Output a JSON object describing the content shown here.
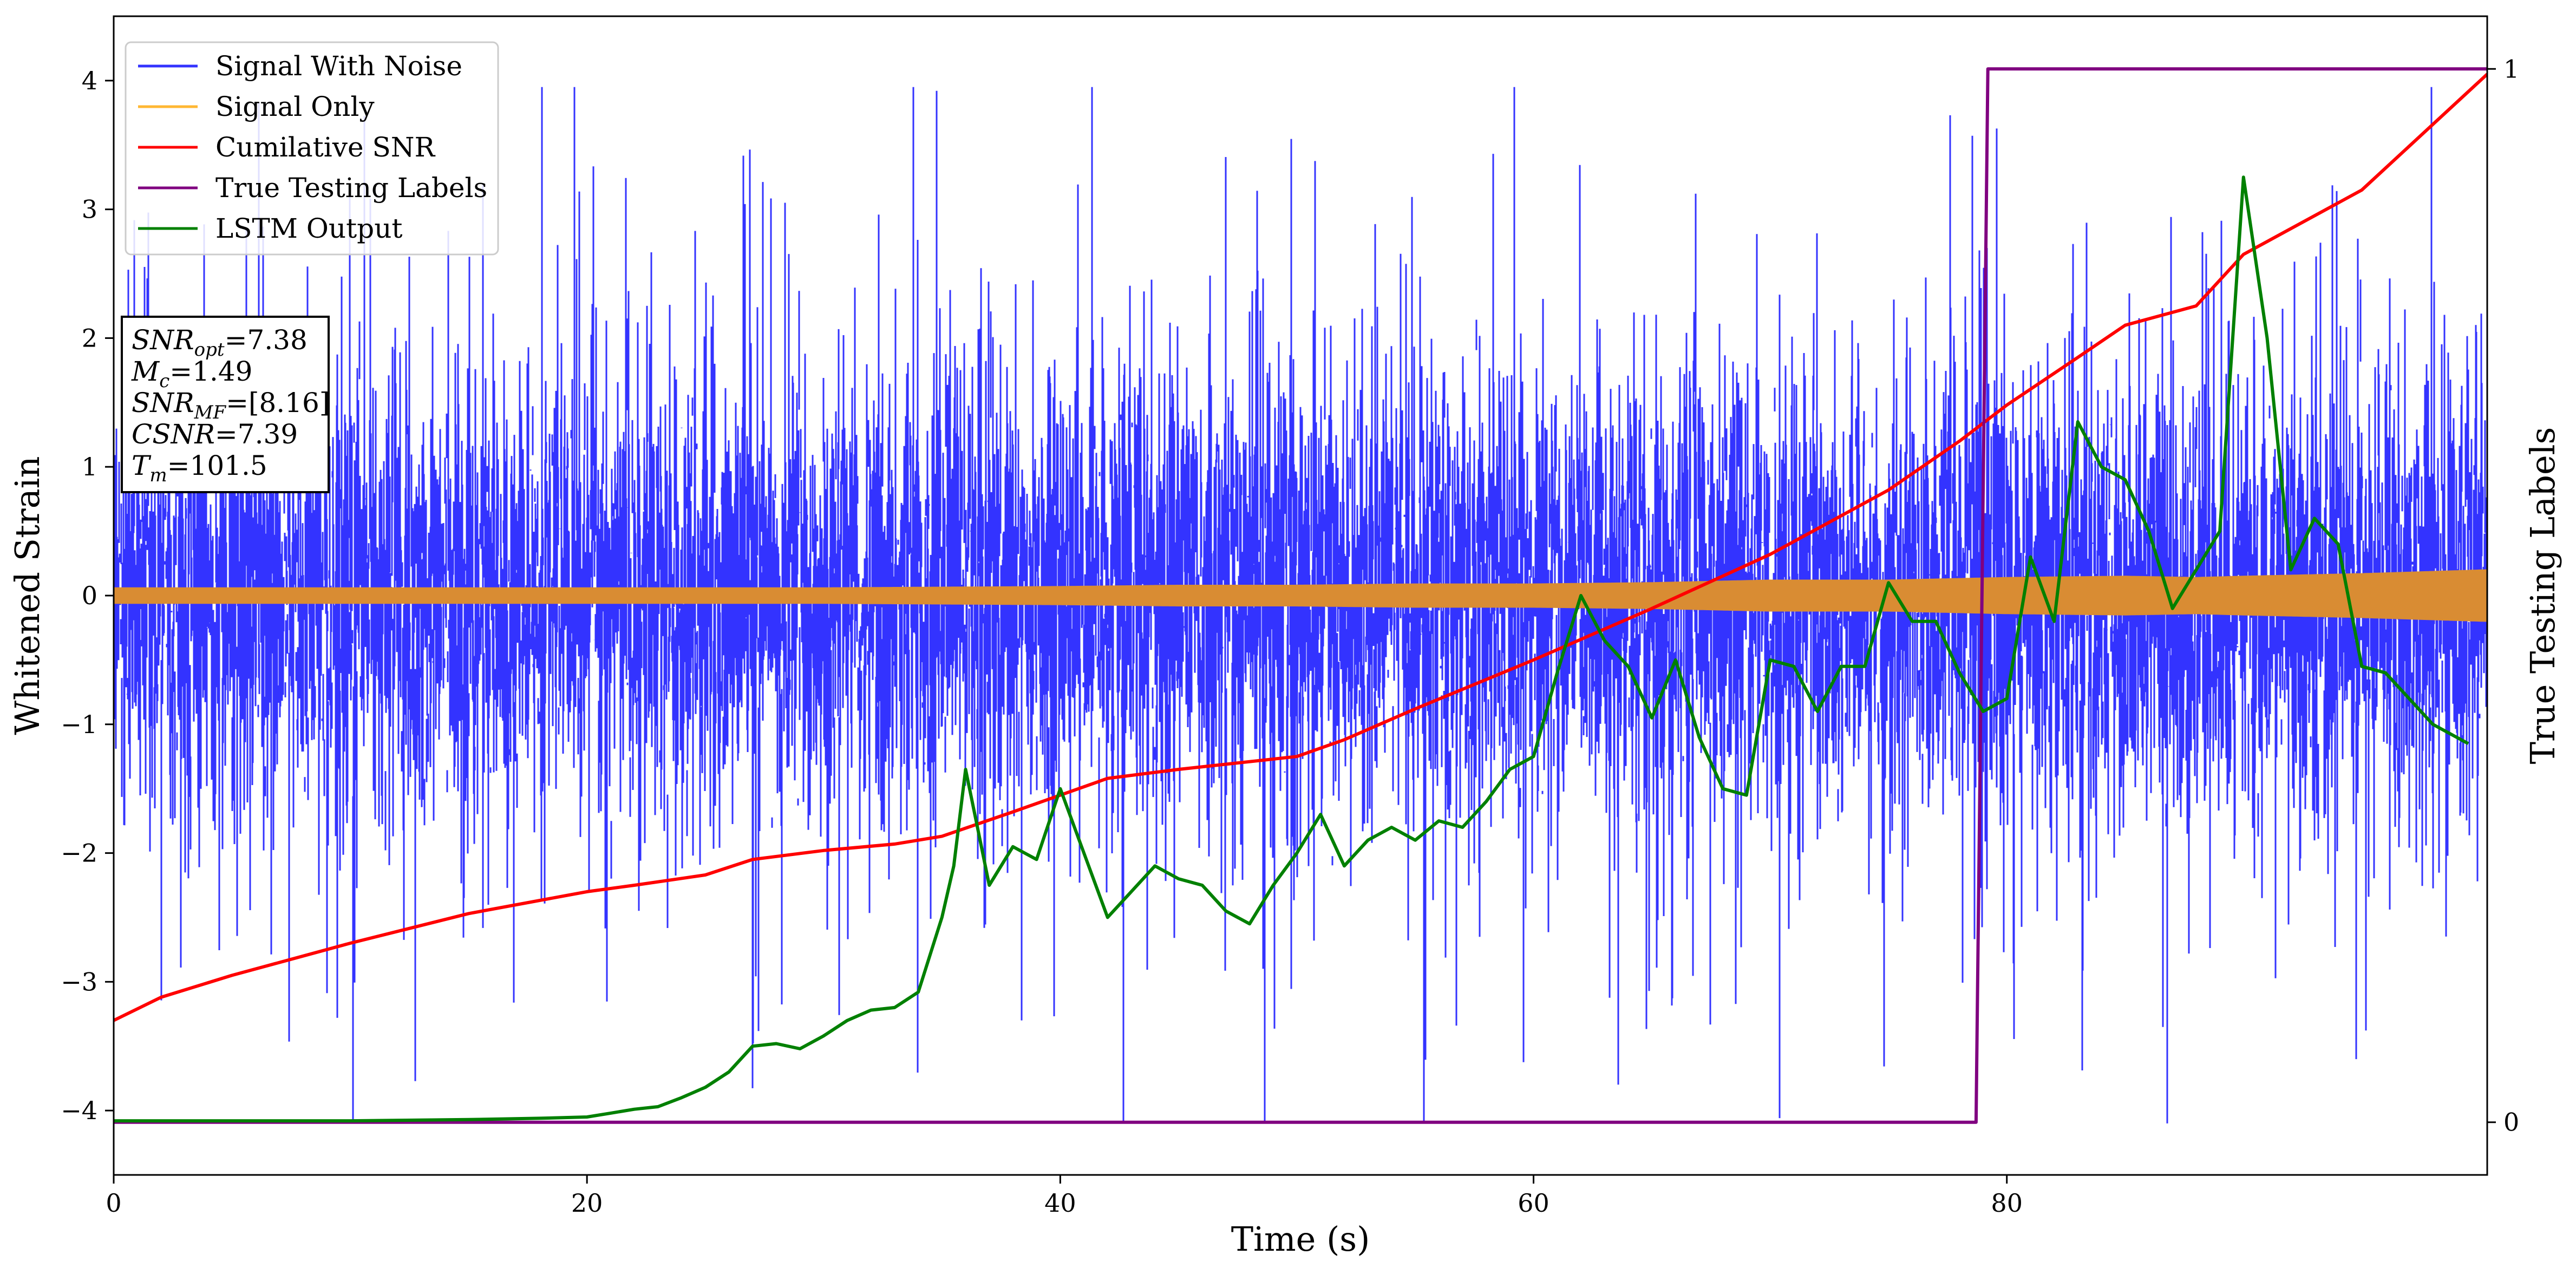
{
  "chart_data": {
    "type": "line",
    "title": "",
    "xlabel": "Time (s)",
    "ylabel": "Whitened Strain",
    "y2label": "True Testing Labels",
    "xlim": [
      0,
      100.3
    ],
    "ylim": [
      -4.5,
      4.5
    ],
    "y2lim": [
      -0.05,
      1.05
    ],
    "x_ticks": [
      "0",
      "20",
      "40",
      "60",
      "80"
    ],
    "x_tick_values": [
      0,
      20,
      40,
      60,
      80
    ],
    "y_ticks": [
      "−4",
      "−3",
      "−2",
      "−1",
      "0",
      "1",
      "2",
      "3",
      "4"
    ],
    "y_tick_values": [
      -4,
      -3,
      -2,
      -1,
      0,
      1,
      2,
      3,
      4
    ],
    "y2_ticks": [
      "0",
      "1"
    ],
    "y2_tick_values": [
      0,
      1
    ],
    "grid": false,
    "legend_position": "upper-left",
    "series": [
      {
        "name": "Signal With Noise",
        "color": "#3333ff",
        "render": "dense-noise",
        "sigma": 1.0,
        "range": [
          -4.1,
          3.95
        ],
        "x_range": [
          0,
          100.3
        ],
        "seed": 12345
      },
      {
        "name": "Signal Only",
        "color": "#d98c33",
        "render": "amplitude-band",
        "x": [
          0,
          10,
          20,
          30,
          40,
          45,
          50,
          55,
          60,
          65,
          70,
          75,
          80,
          85,
          88,
          90,
          95,
          100.3
        ],
        "amplitude": [
          0.06,
          0.06,
          0.06,
          0.06,
          0.07,
          0.08,
          0.08,
          0.09,
          0.09,
          0.1,
          0.12,
          0.12,
          0.14,
          0.15,
          0.14,
          0.15,
          0.17,
          0.2
        ]
      },
      {
        "name": "Cumilative SNR",
        "color": "#ff0000",
        "x": [
          0,
          2,
          5,
          10,
          15,
          20,
          22,
          25,
          27,
          30,
          33,
          35,
          38,
          40,
          42,
          45,
          50,
          52,
          55,
          60,
          65,
          70,
          75,
          78,
          80,
          83,
          85,
          88,
          90,
          95,
          100.3
        ],
        "y": [
          -3.3,
          -3.12,
          -2.95,
          -2.7,
          -2.47,
          -2.3,
          -2.25,
          -2.17,
          -2.05,
          -1.98,
          -1.93,
          -1.87,
          -1.68,
          -1.55,
          -1.42,
          -1.35,
          -1.25,
          -1.12,
          -0.88,
          -0.5,
          -0.1,
          0.32,
          0.82,
          1.2,
          1.48,
          1.85,
          2.1,
          2.25,
          2.65,
          3.15,
          4.05
        ]
      },
      {
        "name": "True Testing Labels",
        "color": "#800080",
        "axis": "y2",
        "x": [
          0,
          78.7,
          79.2,
          100.3
        ],
        "y": [
          0,
          0,
          1,
          1
        ]
      },
      {
        "name": "LSTM Output",
        "color": "#008000",
        "x": [
          0,
          10,
          15,
          18,
          20,
          21,
          22,
          23,
          24,
          25,
          26,
          27,
          28,
          29,
          30,
          31,
          32,
          33,
          34,
          35,
          35.5,
          36,
          36.5,
          37,
          38,
          39,
          40,
          41,
          42,
          43,
          44,
          45,
          46,
          47,
          48,
          49,
          50,
          51,
          52,
          53,
          54,
          55,
          56,
          57,
          58,
          59,
          60,
          61,
          62,
          63,
          64,
          65,
          66,
          67,
          68,
          69,
          70,
          71,
          72,
          73,
          74,
          75,
          76,
          77,
          78,
          79,
          80,
          81,
          82,
          83,
          84,
          85,
          86,
          87,
          88,
          89,
          90,
          91,
          92,
          93,
          94,
          95,
          96,
          97,
          98,
          99.5
        ],
        "y": [
          -4.08,
          -4.08,
          -4.07,
          -4.06,
          -4.05,
          -4.02,
          -3.99,
          -3.97,
          -3.9,
          -3.82,
          -3.7,
          -3.5,
          -3.48,
          -3.52,
          -3.42,
          -3.3,
          -3.22,
          -3.2,
          -3.08,
          -2.5,
          -2.1,
          -1.35,
          -1.8,
          -2.25,
          -1.95,
          -2.05,
          -1.5,
          -2.0,
          -2.5,
          -2.3,
          -2.1,
          -2.2,
          -2.25,
          -2.45,
          -2.55,
          -2.25,
          -2.0,
          -1.7,
          -2.1,
          -1.9,
          -1.8,
          -1.9,
          -1.75,
          -1.8,
          -1.6,
          -1.35,
          -1.25,
          -0.6,
          0.0,
          -0.35,
          -0.55,
          -0.95,
          -0.5,
          -1.1,
          -1.5,
          -1.55,
          -0.5,
          -0.55,
          -0.9,
          -0.55,
          -0.55,
          0.1,
          -0.2,
          -0.2,
          -0.6,
          -0.9,
          -0.8,
          0.3,
          -0.2,
          1.35,
          1.0,
          0.9,
          0.5,
          -0.1,
          0.2,
          0.5,
          3.25,
          2.0,
          0.2,
          0.6,
          0.4,
          -0.55,
          -0.6,
          -0.8,
          -1.0,
          -1.15
        ]
      }
    ],
    "annotation": {
      "lines": [
        {
          "name": "SNR",
          "sub": "opt",
          "value": "=7.38"
        },
        {
          "name": "M",
          "sub": "c",
          "value": "=1.49"
        },
        {
          "name": "SNR",
          "sub": "MF",
          "value": "=[8.16]"
        },
        {
          "name": "CSNR",
          "sub": "",
          "value": "=7.39"
        },
        {
          "name": "T",
          "sub": "m",
          "value": "=101.5"
        }
      ]
    }
  }
}
